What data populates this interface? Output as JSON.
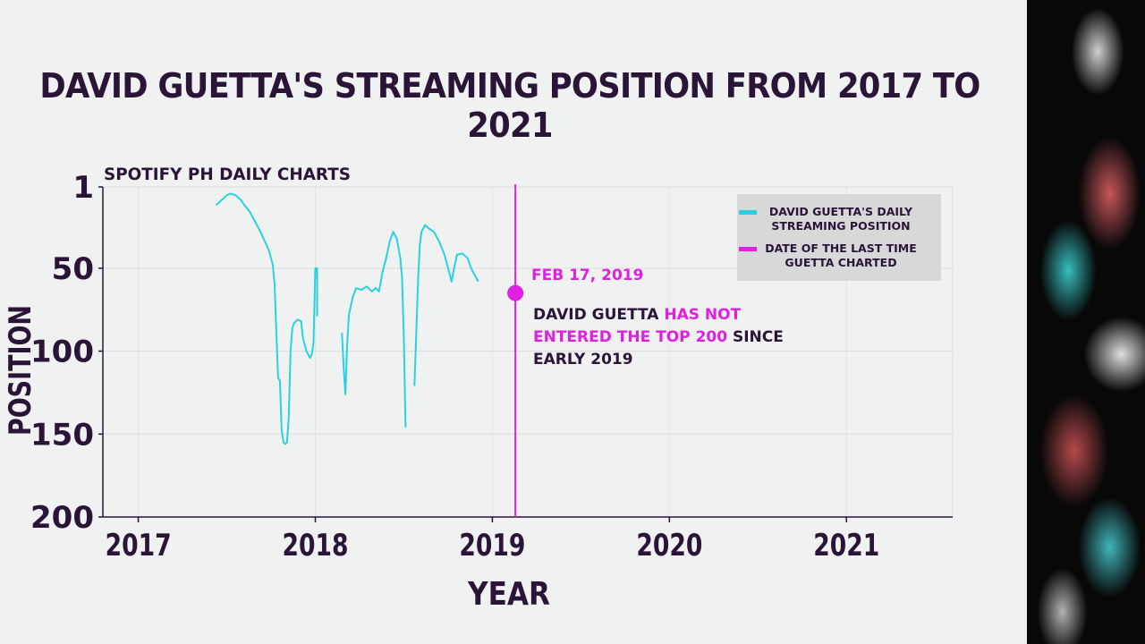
{
  "title": "DAVID GUETTA'S STREAMING POSITION FROM 2017 TO 2021",
  "chart_data": {
    "type": "line",
    "subtitle": "SPOTIFY PH DAILY CHARTS",
    "xlabel": "YEAR",
    "ylabel": "POSITION",
    "x_ticks": [
      2017,
      2018,
      2019,
      2020,
      2021
    ],
    "y_ticks": [
      1,
      50,
      100,
      150,
      200
    ],
    "xlim": [
      2016.8,
      2021.6
    ],
    "ylim": [
      200,
      1
    ],
    "y_inverted": true,
    "grid": true,
    "legend_placement": "top-right",
    "series": [
      {
        "name": "DAVID GUETTA'S  DAILY STREAMING POSITION",
        "color": "#2ad1e0",
        "segments": [
          [
            [
              2017.44,
              12
            ],
            [
              2017.47,
              9
            ],
            [
              2017.5,
              6
            ],
            [
              2017.52,
              5
            ],
            [
              2017.55,
              6
            ],
            [
              2017.58,
              9
            ],
            [
              2017.6,
              12
            ],
            [
              2017.63,
              16
            ],
            [
              2017.66,
              22
            ],
            [
              2017.69,
              28
            ],
            [
              2017.72,
              35
            ],
            [
              2017.74,
              40
            ],
            [
              2017.76,
              48
            ],
            [
              2017.77,
              60
            ],
            [
              2017.78,
              90
            ],
            [
              2017.79,
              116
            ],
            [
              2017.8,
              118
            ],
            [
              2017.81,
              148
            ],
            [
              2017.82,
              155
            ],
            [
              2017.83,
              156
            ],
            [
              2017.84,
              155
            ],
            [
              2017.85,
              140
            ],
            [
              2017.86,
              100
            ],
            [
              2017.87,
              86
            ],
            [
              2017.88,
              83
            ],
            [
              2017.9,
              81
            ],
            [
              2017.92,
              82
            ],
            [
              2017.93,
              92
            ],
            [
              2017.95,
              100
            ],
            [
              2017.97,
              104
            ],
            [
              2017.98,
              102
            ],
            [
              2017.99,
              95
            ],
            [
              2018.0,
              50
            ],
            [
              2018.01,
              50
            ],
            [
              2018.01,
              79
            ]
          ],
          [
            [
              2018.15,
              89
            ],
            [
              2018.16,
              110
            ],
            [
              2018.17,
              126
            ],
            [
              2018.18,
              96
            ],
            [
              2018.19,
              78
            ],
            [
              2018.21,
              68
            ],
            [
              2018.23,
              62
            ],
            [
              2018.26,
              63
            ],
            [
              2018.29,
              61
            ],
            [
              2018.32,
              64
            ],
            [
              2018.34,
              62
            ],
            [
              2018.36,
              64
            ],
            [
              2018.38,
              52
            ],
            [
              2018.4,
              44
            ],
            [
              2018.42,
              34
            ],
            [
              2018.44,
              28
            ],
            [
              2018.46,
              32
            ],
            [
              2018.48,
              44
            ],
            [
              2018.49,
              56
            ],
            [
              2018.5,
              94
            ],
            [
              2018.51,
              146
            ]
          ],
          [
            [
              2018.56,
              121
            ],
            [
              2018.57,
              90
            ],
            [
              2018.58,
              58
            ],
            [
              2018.59,
              36
            ],
            [
              2018.6,
              28
            ],
            [
              2018.61,
              26
            ],
            [
              2018.62,
              24
            ],
            [
              2018.64,
              26
            ],
            [
              2018.67,
              28
            ],
            [
              2018.7,
              34
            ],
            [
              2018.73,
              42
            ],
            [
              2018.75,
              50
            ],
            [
              2018.77,
              58
            ],
            [
              2018.78,
              52
            ],
            [
              2018.8,
              42
            ],
            [
              2018.83,
              41
            ],
            [
              2018.86,
              44
            ],
            [
              2018.88,
              50
            ],
            [
              2018.9,
              54
            ],
            [
              2018.92,
              58
            ]
          ]
        ]
      },
      {
        "name": "DATE OF THE LAST TIME GUETTA CHARTED",
        "color": "#e020e0",
        "x": 2019.13,
        "point": [
          2019.13,
          65
        ]
      }
    ],
    "annotations": {
      "marker_label": "FEB 17, 2019",
      "text_pre": "DAVID GUETTA ",
      "text_highlight": "HAS NOT ENTERED THE TOP 200",
      "text_post": " SINCE  EARLY 2019"
    }
  }
}
